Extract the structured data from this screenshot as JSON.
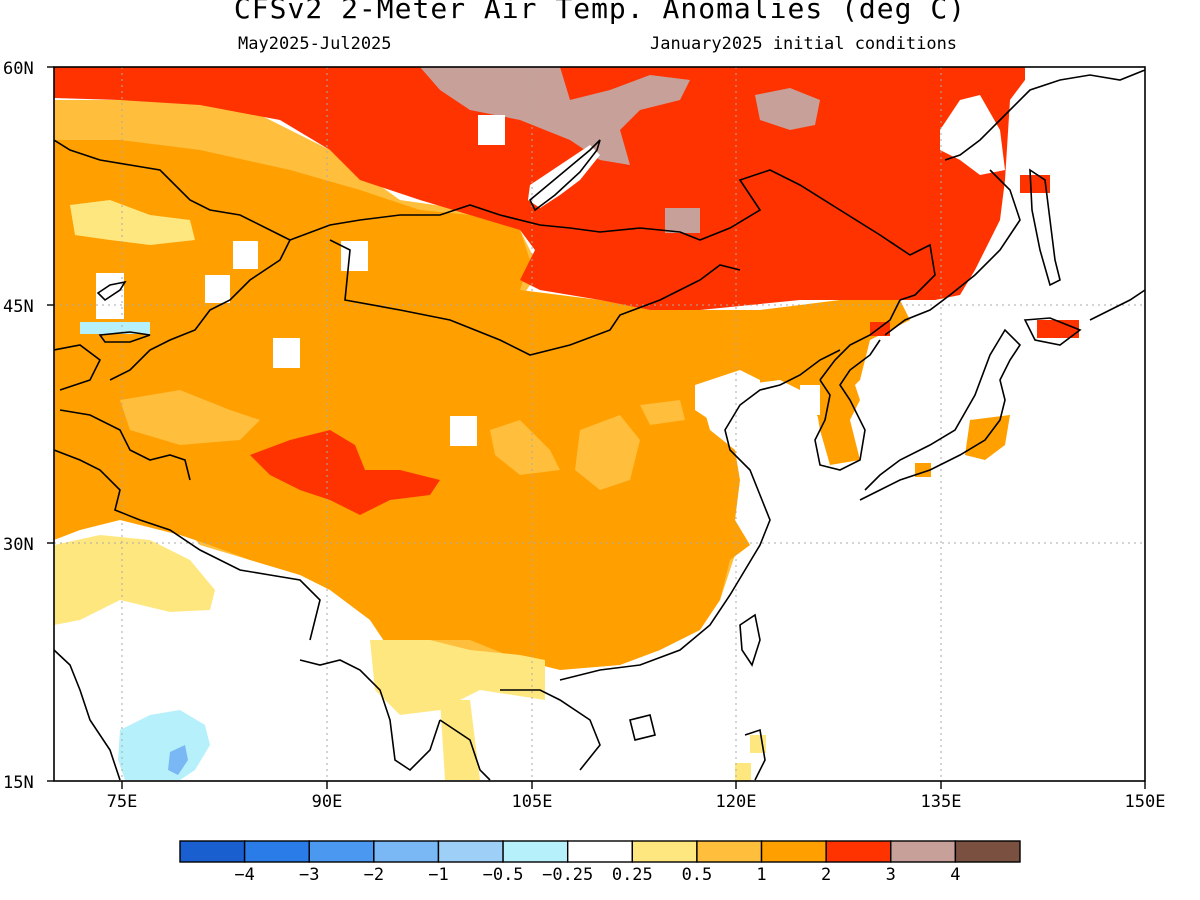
{
  "header": {
    "title": "CFSv2 2-Meter Air Temp. Anomalies (deg C)",
    "period": "May2025-Jul2025",
    "init": "January2025 initial conditions"
  },
  "axes": {
    "lat_labels": [
      "60N",
      "45N",
      "30N",
      "15N"
    ],
    "lon_labels": [
      "75E",
      "90E",
      "105E",
      "120E",
      "135E",
      "150E"
    ]
  },
  "colorbar": {
    "colors": [
      "#1a5fcf",
      "#2a7de8",
      "#4b98f0",
      "#7ab8f5",
      "#9dcff7",
      "#b6f0fb",
      "#ffffff",
      "#ffe780",
      "#ffbe3c",
      "#ff9f00",
      "#ff3300",
      "#c8a09a",
      "#7a5040"
    ],
    "labels": [
      "-4",
      "-3",
      "-2",
      "-1",
      "-0.5",
      "-0.25",
      "0.25",
      "0.5",
      "1",
      "2",
      "3",
      "4"
    ]
  }
}
